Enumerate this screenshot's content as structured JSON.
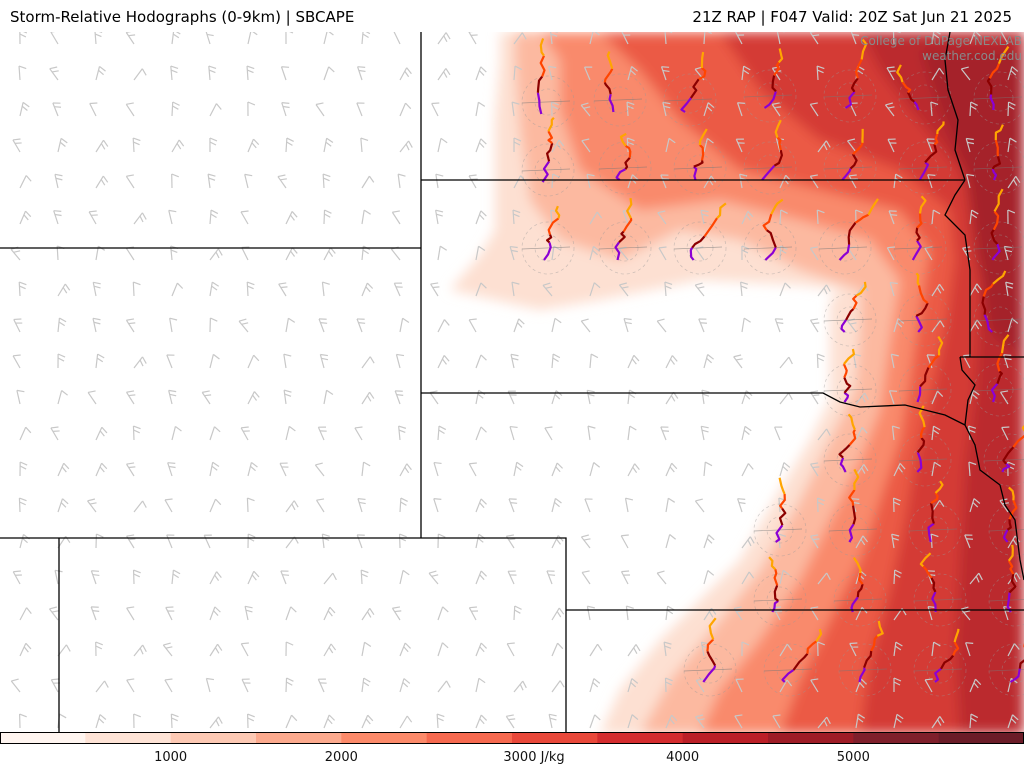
{
  "header": {
    "title_left": "Storm-Relative Hodographs (0-9km) | SBCAPE",
    "title_right": "21Z RAP | F047 Valid: 20Z Sat Jun 21 2025"
  },
  "credit": {
    "line1": "College of DuPage NEXLAB",
    "line2": "weather.cod.edu"
  },
  "colorbar": {
    "ticks": [
      "1000",
      "2000",
      "3000 J/kg",
      "4000",
      "5000"
    ],
    "range": [
      0,
      6000
    ],
    "colors": [
      "#fff5f0",
      "#fee3d6",
      "#fdc9b4",
      "#fcaa8e",
      "#fc8a6a",
      "#f6694f",
      "#e9483a",
      "#d42c2e",
      "#bb1f27",
      "#9e1c26",
      "#7f1f2b",
      "#6b1c28"
    ]
  },
  "layers": {
    "cape_field": "SBCAPE",
    "hodograph_colors": [
      "#8b00d4",
      "#8b0000",
      "#ff4500",
      "#ffa500"
    ],
    "barb_color": "#c8c8c8",
    "boundary_color": "#000000"
  }
}
